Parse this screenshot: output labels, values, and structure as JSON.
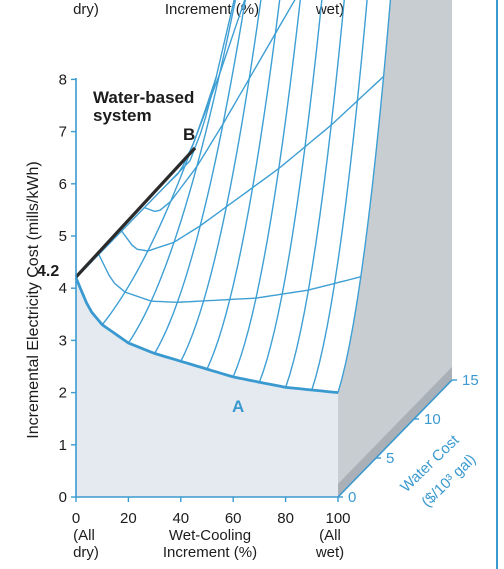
{
  "chart_data": {
    "type": "surface",
    "title": "Water-based system",
    "top_labels": [
      "dry)",
      "Increment (%)",
      "wet)"
    ],
    "ylabel": "Incremental Electricity Cost (mills/kWh)",
    "xlabel": "Wet-Cooling Increment (%)",
    "zlabel": "Water Cost ($/10³ gal)",
    "x_tick_labels": [
      "0",
      "20",
      "40",
      "60",
      "80",
      "100"
    ],
    "x_end_notes": {
      "left": [
        "(All",
        "dry)"
      ],
      "center": "Increment (%)",
      "center_title": "Wet-Cooling",
      "right": [
        "(All",
        "wet)"
      ]
    },
    "y_tick_labels": [
      "0",
      "1",
      "2",
      "3",
      "4",
      "5",
      "6",
      "7",
      "8"
    ],
    "z_tick_labels": [
      "0",
      "5",
      "10",
      "15"
    ],
    "ylim": [
      0,
      8
    ],
    "xlim": [
      0,
      100
    ],
    "zlim": [
      0,
      15
    ],
    "annotation_42": "4.2",
    "point_labels": {
      "A": "A",
      "B": "B"
    },
    "front_curve_zero_water_cost": {
      "x": [
        0,
        5,
        10,
        20,
        30,
        40,
        50,
        60,
        70,
        80,
        90,
        100
      ],
      "y": [
        4.2,
        3.6,
        3.3,
        2.95,
        2.75,
        2.6,
        2.45,
        2.3,
        2.2,
        2.1,
        2.05,
        2.0
      ]
    },
    "top_edge_curve_max_water_cost": {
      "x": [
        0,
        10,
        20,
        30,
        40
      ],
      "y": [
        4.2,
        4.8,
        5.3,
        5.9,
        6.3
      ]
    },
    "point_A": {
      "x": 60,
      "z": 0,
      "y": 2.0
    },
    "point_B": {
      "x": 40,
      "z": 15,
      "y": 6.4
    },
    "colors": {
      "mesh": "#3e9fd4",
      "front_curve": "#3a9ad0",
      "side_shade": "#c8cdd2",
      "side_shade_dark": "#a9b0b7",
      "floor_shade": "#e4eaf0",
      "edge_black": "#2b2b2b"
    }
  }
}
